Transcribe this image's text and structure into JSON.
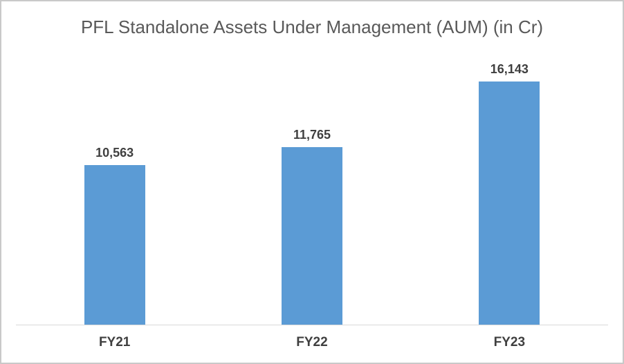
{
  "chart_data": {
    "type": "bar",
    "title": "PFL Standalone Assets Under Management (AUM) (in Cr)",
    "categories": [
      "FY21",
      "FY22",
      "FY23"
    ],
    "values": [
      10563,
      11765,
      16143
    ],
    "value_labels": [
      "10,563",
      "11,765",
      "16,143"
    ],
    "xlabel": "",
    "ylabel": "",
    "ylim": [
      0,
      18000
    ],
    "grid": false,
    "legend": "none",
    "y_axis_visible": false,
    "x_axis_visible": true,
    "data_label_position": "outside-end"
  },
  "colors": {
    "bar": "#5b9bd5",
    "title_text": "#595959",
    "label_text": "#3f3f3f",
    "axis_line": "#d9d9d9",
    "frame_border": "#c9c9c9",
    "background": "#ffffff"
  }
}
